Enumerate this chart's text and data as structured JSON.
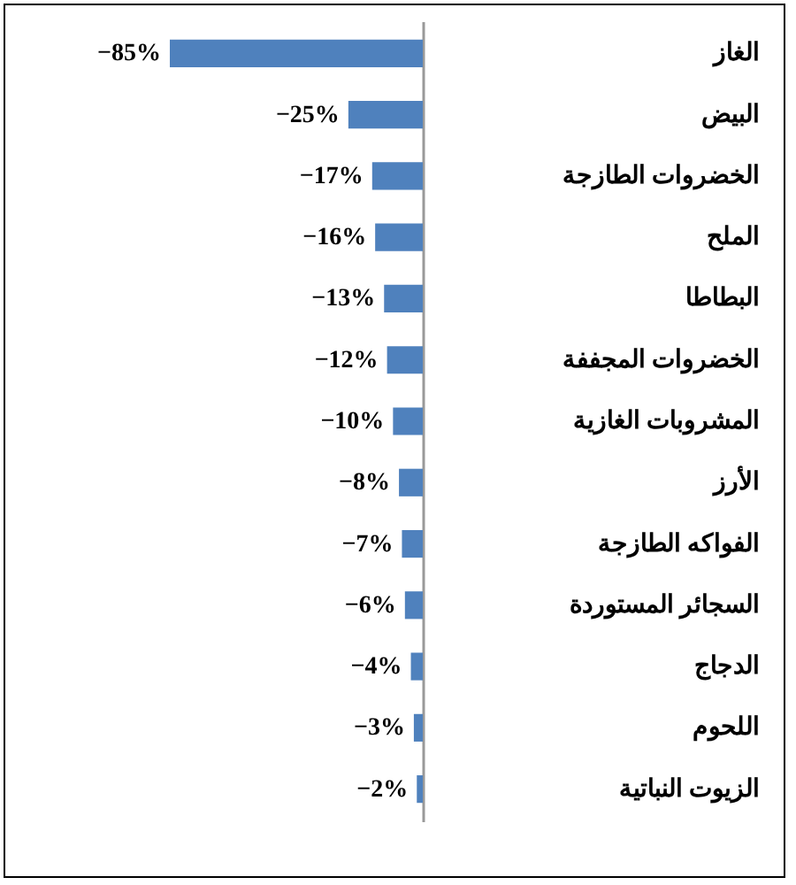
{
  "chart_data": {
    "type": "bar",
    "orientation": "horizontal",
    "categories": [
      "الغاز",
      "البيض",
      "الخضروات الطازجة",
      "الملح",
      "البطاطا",
      "الخضروات المجففة",
      "المشروبات الغازية",
      "الأرز",
      "الفواكه الطازجة",
      "السجائر المستوردة",
      "الدجاج",
      "اللحوم",
      "الزيوت النباتية"
    ],
    "values": [
      -85,
      -25,
      -17,
      -16,
      -13,
      -12,
      -10,
      -8,
      -7,
      -6,
      -4,
      -3,
      -2
    ],
    "value_labels": [
      "−85%",
      "−25%",
      "−17%",
      "−16%",
      "−13%",
      "−12%",
      "−10%",
      "−8%",
      "−7%",
      "−6%",
      "−4%",
      "−3%",
      "−2%"
    ],
    "color": "#4f81bd"
  }
}
